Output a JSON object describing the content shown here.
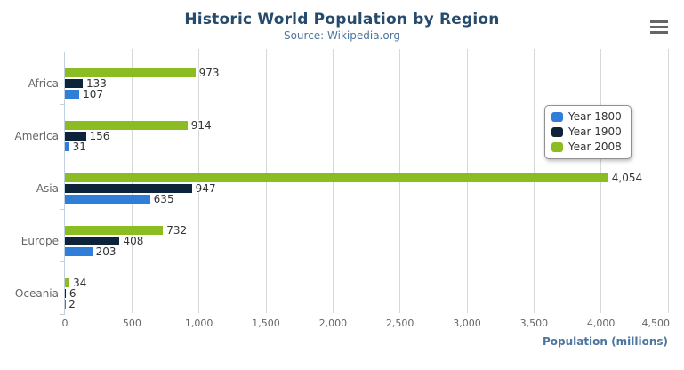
{
  "header": {
    "title": "Historic World Population by Region",
    "subtitle": "Source: Wikipedia.org"
  },
  "export_menu": {
    "icon": "hamburger-icon",
    "tooltip": "Chart context menu"
  },
  "chart_data": {
    "type": "bar",
    "orientation": "horizontal",
    "title": "Historic World Population by Region",
    "subtitle": "Source: Wikipedia.org",
    "categories": [
      "Africa",
      "America",
      "Asia",
      "Europe",
      "Oceania"
    ],
    "series": [
      {
        "name": "Year 1800",
        "color": "#2f7ed8",
        "values": [
          107,
          31,
          635,
          203,
          2
        ]
      },
      {
        "name": "Year 1900",
        "color": "#0d233a",
        "values": [
          133,
          156,
          947,
          408,
          6
        ]
      },
      {
        "name": "Year 2008",
        "color": "#8bbc21",
        "values": [
          973,
          914,
          4054,
          732,
          34
        ]
      }
    ],
    "bar_order_top_to_bottom": [
      "Year 2008",
      "Year 1900",
      "Year 1800"
    ],
    "data_labels": true,
    "data_label_format": "thousands-separated",
    "xlabel": "Population (millions)",
    "ylabel": "",
    "xlim": [
      0,
      4500
    ],
    "xticks": [
      0,
      500,
      1000,
      1500,
      2000,
      2500,
      3000,
      3500,
      4000,
      4500
    ],
    "grid": true,
    "legend": {
      "position": "right-middle",
      "items": [
        {
          "label": "Year 1800",
          "color": "#2f7ed8"
        },
        {
          "label": "Year 1900",
          "color": "#0d233a"
        },
        {
          "label": "Year 2008",
          "color": "#8bbc21"
        }
      ]
    }
  },
  "colors": {
    "background": "#ffffff",
    "title": "#274b6d",
    "subtitle": "#4d759e",
    "axis_title": "#4d759e",
    "axis_labels": "#666666",
    "category_labels": "#666666",
    "data_labels": "#333333",
    "grid_line": "#d8d8d8",
    "category_axis_line": "#c0d0e0",
    "legend_border": "#909090",
    "legend_text": "#333333",
    "menu_icon": "#666666"
  }
}
